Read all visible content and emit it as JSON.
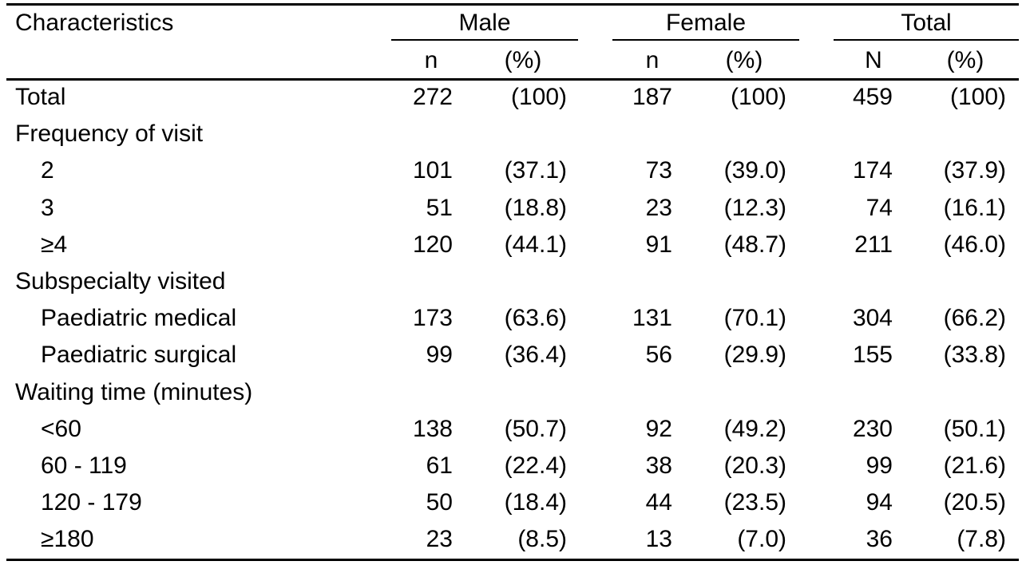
{
  "header": {
    "characteristics": "Characteristics",
    "male": "Male",
    "female": "Female",
    "total": "Total",
    "sub": {
      "male_n": "n",
      "male_pct": "(%)",
      "female_n": "n",
      "female_pct": "(%)",
      "total_n": "N",
      "total_pct": "(%)"
    }
  },
  "rows": [
    {
      "label": "Total",
      "indent": 0,
      "male_n": "272",
      "male_pct": "(100)",
      "female_n": "187",
      "female_pct": "(100)",
      "total_n": "459",
      "total_pct": "(100)"
    },
    {
      "label": "Frequency of visit",
      "indent": 0,
      "male_n": "",
      "male_pct": "",
      "female_n": "",
      "female_pct": "",
      "total_n": "",
      "total_pct": ""
    },
    {
      "label": "2",
      "indent": 1,
      "male_n": "101",
      "male_pct": "(37.1)",
      "female_n": "73",
      "female_pct": "(39.0)",
      "total_n": "174",
      "total_pct": "(37.9)"
    },
    {
      "label": "3",
      "indent": 1,
      "male_n": "51",
      "male_pct": "(18.8)",
      "female_n": "23",
      "female_pct": "(12.3)",
      "total_n": "74",
      "total_pct": "(16.1)"
    },
    {
      "label": "≥4",
      "indent": 1,
      "male_n": "120",
      "male_pct": "(44.1)",
      "female_n": "91",
      "female_pct": "(48.7)",
      "total_n": "211",
      "total_pct": "(46.0)"
    },
    {
      "label": "Subspecialty visited",
      "indent": 0,
      "male_n": "",
      "male_pct": "",
      "female_n": "",
      "female_pct": "",
      "total_n": "",
      "total_pct": ""
    },
    {
      "label": "Paediatric medical",
      "indent": 1,
      "male_n": "173",
      "male_pct": "(63.6)",
      "female_n": "131",
      "female_pct": "(70.1)",
      "total_n": "304",
      "total_pct": "(66.2)"
    },
    {
      "label": "Paediatric surgical",
      "indent": 1,
      "male_n": "99",
      "male_pct": "(36.4)",
      "female_n": "56",
      "female_pct": "(29.9)",
      "total_n": "155",
      "total_pct": "(33.8)"
    },
    {
      "label": "Waiting time (minutes)",
      "indent": 0,
      "male_n": "",
      "male_pct": "",
      "female_n": "",
      "female_pct": "",
      "total_n": "",
      "total_pct": ""
    },
    {
      "label": "<60",
      "indent": 1,
      "male_n": "138",
      "male_pct": "(50.7)",
      "female_n": "92",
      "female_pct": "(49.2)",
      "total_n": "230",
      "total_pct": "(50.1)"
    },
    {
      "label": "60 - 119",
      "indent": 1,
      "male_n": "61",
      "male_pct": "(22.4)",
      "female_n": "38",
      "female_pct": "(20.3)",
      "total_n": "99",
      "total_pct": "(21.6)"
    },
    {
      "label": "120 - 179",
      "indent": 1,
      "male_n": "50",
      "male_pct": "(18.4)",
      "female_n": "44",
      "female_pct": "(23.5)",
      "total_n": "94",
      "total_pct": "(20.5)"
    },
    {
      "label": "≥180",
      "indent": 1,
      "male_n": "23",
      "male_pct": "(8.5)",
      "female_n": "13",
      "female_pct": "(7.0)",
      "total_n": "36",
      "total_pct": "(7.8)"
    }
  ]
}
